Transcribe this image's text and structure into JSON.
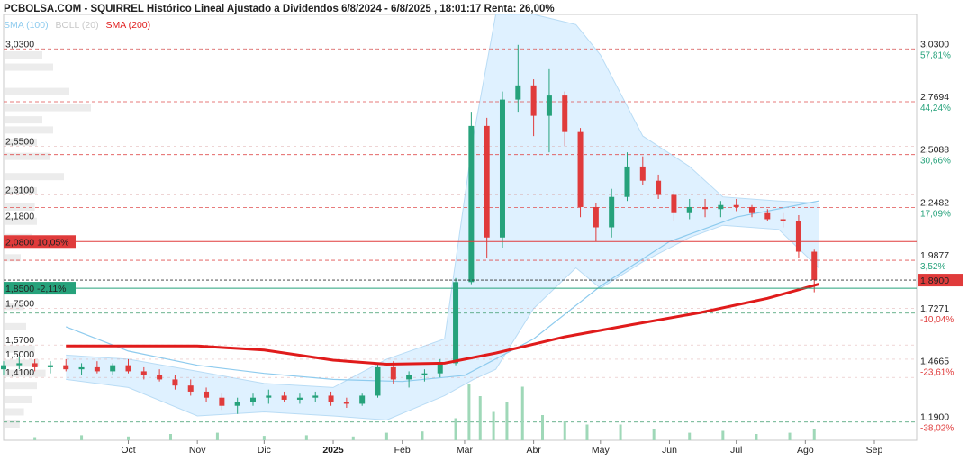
{
  "header": {
    "title": "PCBOLSA.COM - SQUIRREL Histórico Lineal Ajustado a Dividendos 6/8/2024 - 6/8/2025 , 18:01:17 Renta: 26,00%",
    "legend": {
      "sma100": "SMA (100)",
      "boll": "BOLL (20)",
      "sma200": "SMA (200)"
    }
  },
  "colors": {
    "up": "#26a27b",
    "down": "#e03b3b",
    "sma200": "#e01b1b",
    "sma100": "#8ecbee",
    "boll_fill": "#dcefff",
    "grid_red": "#e05050",
    "grid_green": "#3a9a6a"
  },
  "chart_data": {
    "type": "candlestick",
    "title": "PCBOLSA.COM - SQUIRREL Histórico Lineal Ajustado a Dividendos 6/8/2024 - 6/8/2025 , 18:01:17 Renta: 26,00%",
    "ylim": [
      1.1,
      3.2
    ],
    "x_ticks": [
      "Oct",
      "Nov",
      "Dic",
      "2025",
      "Feb",
      "Mar",
      "Abr",
      "May",
      "Jun",
      "Jul",
      "Ago",
      "Sep"
    ],
    "left_levels": [
      {
        "label": "3,0300",
        "value": 3.03
      },
      {
        "label": "2,5500",
        "value": 2.55
      },
      {
        "label": "2,3100",
        "value": 2.31
      },
      {
        "label": "2,1800",
        "value": 2.18
      },
      {
        "label": "1,7500",
        "value": 1.75
      },
      {
        "label": "1,5700",
        "value": 1.57
      },
      {
        "label": "1,5000",
        "value": 1.5
      },
      {
        "label": "1,4100",
        "value": 1.41
      }
    ],
    "right_levels": [
      {
        "label": "3,0300",
        "pct": "57,81%",
        "value": 3.03,
        "sign": "up"
      },
      {
        "label": "2,7694",
        "pct": "44,24%",
        "value": 2.7694,
        "sign": "up"
      },
      {
        "label": "2,5088",
        "pct": "30,66%",
        "value": 2.5088,
        "sign": "up"
      },
      {
        "label": "2,2482",
        "pct": "17,09%",
        "value": 2.2482,
        "sign": "up"
      },
      {
        "label": "1,9877",
        "pct": "3,52%",
        "value": 1.9877,
        "sign": "up"
      },
      {
        "label": "1,7271",
        "pct": "-10,04%",
        "value": 1.7271,
        "sign": "down"
      },
      {
        "label": "1,4665",
        "pct": "-23,61%",
        "value": 1.4665,
        "sign": "down"
      },
      {
        "label": "1,1900",
        "pct": "-38,02%",
        "value": 1.19,
        "sign": "down"
      }
    ],
    "markers": {
      "resistance": {
        "label": "2,0800  10,05%",
        "value": 2.08
      },
      "support": {
        "label": "1,8500  -2,11%",
        "value": 1.85
      },
      "last": {
        "label": "1,8900",
        "value": 1.89
      }
    },
    "volume_profile": [
      {
        "price": 3.0,
        "size": 0.35
      },
      {
        "price": 2.94,
        "size": 0.45
      },
      {
        "price": 2.82,
        "size": 0.6
      },
      {
        "price": 2.74,
        "size": 0.8
      },
      {
        "price": 2.68,
        "size": 0.35
      },
      {
        "price": 2.63,
        "size": 0.45
      },
      {
        "price": 2.57,
        "size": 0.3
      },
      {
        "price": 2.5,
        "size": 0.42
      },
      {
        "price": 2.4,
        "size": 0.55
      },
      {
        "price": 2.33,
        "size": 0.3
      },
      {
        "price": 2.25,
        "size": 0.28
      },
      {
        "price": 2.18,
        "size": 0.3
      },
      {
        "price": 2.1,
        "size": 0.25
      },
      {
        "price": 2.0,
        "size": 0.15
      },
      {
        "price": 1.76,
        "size": 0.18
      },
      {
        "price": 1.66,
        "size": 0.2
      },
      {
        "price": 1.55,
        "size": 0.28
      },
      {
        "price": 1.48,
        "size": 0.32
      },
      {
        "price": 1.43,
        "size": 0.38
      },
      {
        "price": 1.37,
        "size": 0.3
      },
      {
        "price": 1.3,
        "size": 0.25
      },
      {
        "price": 1.24,
        "size": 0.18
      },
      {
        "price": 1.18,
        "size": 0.14
      }
    ],
    "ohlc_weekly": [
      {
        "date": "2024-08-06",
        "o": 1.45,
        "h": 1.49,
        "l": 1.42,
        "c": 1.47
      },
      {
        "date": "2024-08-13",
        "o": 1.47,
        "h": 1.51,
        "l": 1.45,
        "c": 1.48
      },
      {
        "date": "2024-08-20",
        "o": 1.48,
        "h": 1.5,
        "l": 1.44,
        "c": 1.46
      },
      {
        "date": "2024-08-27",
        "o": 1.46,
        "h": 1.49,
        "l": 1.43,
        "c": 1.47
      },
      {
        "date": "2024-09-03",
        "o": 1.47,
        "h": 1.5,
        "l": 1.44,
        "c": 1.45
      },
      {
        "date": "2024-09-10",
        "o": 1.45,
        "h": 1.48,
        "l": 1.42,
        "c": 1.46
      },
      {
        "date": "2024-09-17",
        "o": 1.46,
        "h": 1.49,
        "l": 1.43,
        "c": 1.44
      },
      {
        "date": "2024-09-24",
        "o": 1.44,
        "h": 1.48,
        "l": 1.42,
        "c": 1.47
      },
      {
        "date": "2024-10-01",
        "o": 1.47,
        "h": 1.5,
        "l": 1.43,
        "c": 1.44
      },
      {
        "date": "2024-10-08",
        "o": 1.44,
        "h": 1.46,
        "l": 1.4,
        "c": 1.42
      },
      {
        "date": "2024-10-15",
        "o": 1.42,
        "h": 1.45,
        "l": 1.39,
        "c": 1.4
      },
      {
        "date": "2024-10-22",
        "o": 1.4,
        "h": 1.42,
        "l": 1.35,
        "c": 1.37
      },
      {
        "date": "2024-10-29",
        "o": 1.37,
        "h": 1.4,
        "l": 1.32,
        "c": 1.34
      },
      {
        "date": "2024-11-05",
        "o": 1.34,
        "h": 1.36,
        "l": 1.29,
        "c": 1.31
      },
      {
        "date": "2024-11-12",
        "o": 1.31,
        "h": 1.33,
        "l": 1.25,
        "c": 1.27
      },
      {
        "date": "2024-11-19",
        "o": 1.27,
        "h": 1.31,
        "l": 1.23,
        "c": 1.29
      },
      {
        "date": "2024-11-26",
        "o": 1.29,
        "h": 1.33,
        "l": 1.27,
        "c": 1.31
      },
      {
        "date": "2024-12-03",
        "o": 1.31,
        "h": 1.35,
        "l": 1.28,
        "c": 1.32
      },
      {
        "date": "2024-12-10",
        "o": 1.32,
        "h": 1.34,
        "l": 1.29,
        "c": 1.3
      },
      {
        "date": "2024-12-17",
        "o": 1.3,
        "h": 1.33,
        "l": 1.28,
        "c": 1.31
      },
      {
        "date": "2024-12-24",
        "o": 1.31,
        "h": 1.34,
        "l": 1.29,
        "c": 1.32
      },
      {
        "date": "2024-12-31",
        "o": 1.32,
        "h": 1.34,
        "l": 1.27,
        "c": 1.29
      },
      {
        "date": "2025-01-07",
        "o": 1.29,
        "h": 1.31,
        "l": 1.26,
        "c": 1.28
      },
      {
        "date": "2025-01-14",
        "o": 1.28,
        "h": 1.33,
        "l": 1.27,
        "c": 1.32
      },
      {
        "date": "2025-01-21",
        "o": 1.32,
        "h": 1.48,
        "l": 1.31,
        "c": 1.46
      },
      {
        "date": "2025-01-28",
        "o": 1.46,
        "h": 1.49,
        "l": 1.38,
        "c": 1.4
      },
      {
        "date": "2025-02-04",
        "o": 1.4,
        "h": 1.44,
        "l": 1.36,
        "c": 1.42
      },
      {
        "date": "2025-02-11",
        "o": 1.42,
        "h": 1.45,
        "l": 1.39,
        "c": 1.43
      },
      {
        "date": "2025-02-18",
        "o": 1.43,
        "h": 1.5,
        "l": 1.41,
        "c": 1.48
      },
      {
        "date": "2025-02-25",
        "o": 1.48,
        "h": 1.9,
        "l": 1.47,
        "c": 1.88
      },
      {
        "date": "2025-03-04",
        "o": 1.88,
        "h": 2.72,
        "l": 1.87,
        "c": 2.65
      },
      {
        "date": "2025-03-11",
        "o": 2.65,
        "h": 2.69,
        "l": 2.0,
        "c": 2.1
      },
      {
        "date": "2025-03-18",
        "o": 2.1,
        "h": 2.82,
        "l": 2.05,
        "c": 2.78
      },
      {
        "date": "2025-03-25",
        "o": 2.78,
        "h": 3.05,
        "l": 2.72,
        "c": 2.85
      },
      {
        "date": "2025-04-01",
        "o": 2.85,
        "h": 2.88,
        "l": 2.6,
        "c": 2.7
      },
      {
        "date": "2025-04-08",
        "o": 2.7,
        "h": 2.93,
        "l": 2.52,
        "c": 2.8
      },
      {
        "date": "2025-04-15",
        "o": 2.8,
        "h": 2.82,
        "l": 2.55,
        "c": 2.62
      },
      {
        "date": "2025-04-22",
        "o": 2.62,
        "h": 2.64,
        "l": 2.2,
        "c": 2.25
      },
      {
        "date": "2025-04-29",
        "o": 2.25,
        "h": 2.27,
        "l": 2.08,
        "c": 2.15
      },
      {
        "date": "2025-05-06",
        "o": 2.15,
        "h": 2.34,
        "l": 2.1,
        "c": 2.3
      },
      {
        "date": "2025-05-13",
        "o": 2.3,
        "h": 2.52,
        "l": 2.28,
        "c": 2.45
      },
      {
        "date": "2025-05-20",
        "o": 2.45,
        "h": 2.5,
        "l": 2.36,
        "c": 2.38
      },
      {
        "date": "2025-05-27",
        "o": 2.38,
        "h": 2.41,
        "l": 2.29,
        "c": 2.31
      },
      {
        "date": "2025-06-03",
        "o": 2.31,
        "h": 2.33,
        "l": 2.18,
        "c": 2.22
      },
      {
        "date": "2025-06-10",
        "o": 2.22,
        "h": 2.29,
        "l": 2.19,
        "c": 2.25
      },
      {
        "date": "2025-06-17",
        "o": 2.25,
        "h": 2.29,
        "l": 2.2,
        "c": 2.24
      },
      {
        "date": "2025-06-24",
        "o": 2.24,
        "h": 2.28,
        "l": 2.2,
        "c": 2.26
      },
      {
        "date": "2025-07-01",
        "o": 2.26,
        "h": 2.29,
        "l": 2.23,
        "c": 2.25
      },
      {
        "date": "2025-07-08",
        "o": 2.25,
        "h": 2.26,
        "l": 2.2,
        "c": 2.22
      },
      {
        "date": "2025-07-15",
        "o": 2.22,
        "h": 2.24,
        "l": 2.18,
        "c": 2.19
      },
      {
        "date": "2025-07-22",
        "o": 2.19,
        "h": 2.22,
        "l": 2.15,
        "c": 2.18
      },
      {
        "date": "2025-07-29",
        "o": 2.18,
        "h": 2.21,
        "l": 2.0,
        "c": 2.03
      },
      {
        "date": "2025-08-05",
        "o": 2.03,
        "h": 2.04,
        "l": 1.83,
        "c": 1.89
      }
    ],
    "sma200": [
      {
        "date": "2024-09-03",
        "v": 1.565
      },
      {
        "date": "2024-10-01",
        "v": 1.565
      },
      {
        "date": "2024-11-01",
        "v": 1.565
      },
      {
        "date": "2024-12-01",
        "v": 1.545
      },
      {
        "date": "2025-01-01",
        "v": 1.495
      },
      {
        "date": "2025-01-25",
        "v": 1.475
      },
      {
        "date": "2025-02-20",
        "v": 1.48
      },
      {
        "date": "2025-03-15",
        "v": 1.53
      },
      {
        "date": "2025-04-15",
        "v": 1.61
      },
      {
        "date": "2025-05-15",
        "v": 1.67
      },
      {
        "date": "2025-06-15",
        "v": 1.73
      },
      {
        "date": "2025-07-15",
        "v": 1.8
      },
      {
        "date": "2025-08-07",
        "v": 1.87
      }
    ],
    "sma100": [
      {
        "date": "2024-09-03",
        "v": 1.66
      },
      {
        "date": "2024-10-01",
        "v": 1.54
      },
      {
        "date": "2024-11-01",
        "v": 1.47
      },
      {
        "date": "2024-12-01",
        "v": 1.43
      },
      {
        "date": "2025-01-01",
        "v": 1.4
      },
      {
        "date": "2025-02-01",
        "v": 1.39
      },
      {
        "date": "2025-03-01",
        "v": 1.42
      },
      {
        "date": "2025-04-01",
        "v": 1.6
      },
      {
        "date": "2025-05-01",
        "v": 1.86
      },
      {
        "date": "2025-06-01",
        "v": 2.08
      },
      {
        "date": "2025-07-01",
        "v": 2.2
      },
      {
        "date": "2025-08-07",
        "v": 2.28
      }
    ],
    "boll_upper": [
      {
        "date": "2024-09-03",
        "v": 1.52
      },
      {
        "date": "2024-10-01",
        "v": 1.5
      },
      {
        "date": "2024-11-01",
        "v": 1.44
      },
      {
        "date": "2024-12-01",
        "v": 1.38
      },
      {
        "date": "2025-01-01",
        "v": 1.36
      },
      {
        "date": "2025-01-25",
        "v": 1.5
      },
      {
        "date": "2025-02-20",
        "v": 1.6
      },
      {
        "date": "2025-03-05",
        "v": 2.6
      },
      {
        "date": "2025-03-15",
        "v": 3.2
      },
      {
        "date": "2025-04-01",
        "v": 3.2
      },
      {
        "date": "2025-04-20",
        "v": 3.15
      },
      {
        "date": "2025-05-01",
        "v": 3.0
      },
      {
        "date": "2025-05-20",
        "v": 2.6
      },
      {
        "date": "2025-06-10",
        "v": 2.45
      },
      {
        "date": "2025-06-25",
        "v": 2.3
      },
      {
        "date": "2025-07-20",
        "v": 2.28
      },
      {
        "date": "2025-08-07",
        "v": 2.27
      }
    ],
    "boll_lower": [
      {
        "date": "2024-09-03",
        "v": 1.4
      },
      {
        "date": "2024-10-01",
        "v": 1.36
      },
      {
        "date": "2024-11-01",
        "v": 1.22
      },
      {
        "date": "2024-12-01",
        "v": 1.24
      },
      {
        "date": "2025-01-01",
        "v": 1.22
      },
      {
        "date": "2025-01-25",
        "v": 1.2
      },
      {
        "date": "2025-02-20",
        "v": 1.32
      },
      {
        "date": "2025-03-05",
        "v": 1.4
      },
      {
        "date": "2025-03-15",
        "v": 1.45
      },
      {
        "date": "2025-04-01",
        "v": 1.75
      },
      {
        "date": "2025-04-20",
        "v": 1.95
      },
      {
        "date": "2025-05-01",
        "v": 1.85
      },
      {
        "date": "2025-05-20",
        "v": 1.98
      },
      {
        "date": "2025-06-10",
        "v": 2.1
      },
      {
        "date": "2025-06-25",
        "v": 2.16
      },
      {
        "date": "2025-07-20",
        "v": 2.14
      },
      {
        "date": "2025-08-07",
        "v": 1.95
      }
    ],
    "volume": [
      {
        "date": "2024-08-20",
        "v": 0.05
      },
      {
        "date": "2024-09-10",
        "v": 0.08
      },
      {
        "date": "2024-10-01",
        "v": 0.06
      },
      {
        "date": "2024-10-20",
        "v": 0.1
      },
      {
        "date": "2024-11-10",
        "v": 0.12
      },
      {
        "date": "2024-12-01",
        "v": 0.07
      },
      {
        "date": "2024-12-20",
        "v": 0.08
      },
      {
        "date": "2025-01-10",
        "v": 0.06
      },
      {
        "date": "2025-01-25",
        "v": 0.12
      },
      {
        "date": "2025-02-10",
        "v": 0.14
      },
      {
        "date": "2025-02-25",
        "v": 0.35
      },
      {
        "date": "2025-03-03",
        "v": 0.9
      },
      {
        "date": "2025-03-08",
        "v": 0.7
      },
      {
        "date": "2025-03-14",
        "v": 0.45
      },
      {
        "date": "2025-03-20",
        "v": 0.6
      },
      {
        "date": "2025-03-27",
        "v": 0.85
      },
      {
        "date": "2025-04-05",
        "v": 0.4
      },
      {
        "date": "2025-04-15",
        "v": 0.3
      },
      {
        "date": "2025-04-25",
        "v": 0.25
      },
      {
        "date": "2025-05-10",
        "v": 0.25
      },
      {
        "date": "2025-05-25",
        "v": 0.18
      },
      {
        "date": "2025-06-10",
        "v": 0.12
      },
      {
        "date": "2025-06-25",
        "v": 0.15
      },
      {
        "date": "2025-07-10",
        "v": 0.1
      },
      {
        "date": "2025-07-25",
        "v": 0.12
      },
      {
        "date": "2025-08-05",
        "v": 0.18
      }
    ]
  }
}
